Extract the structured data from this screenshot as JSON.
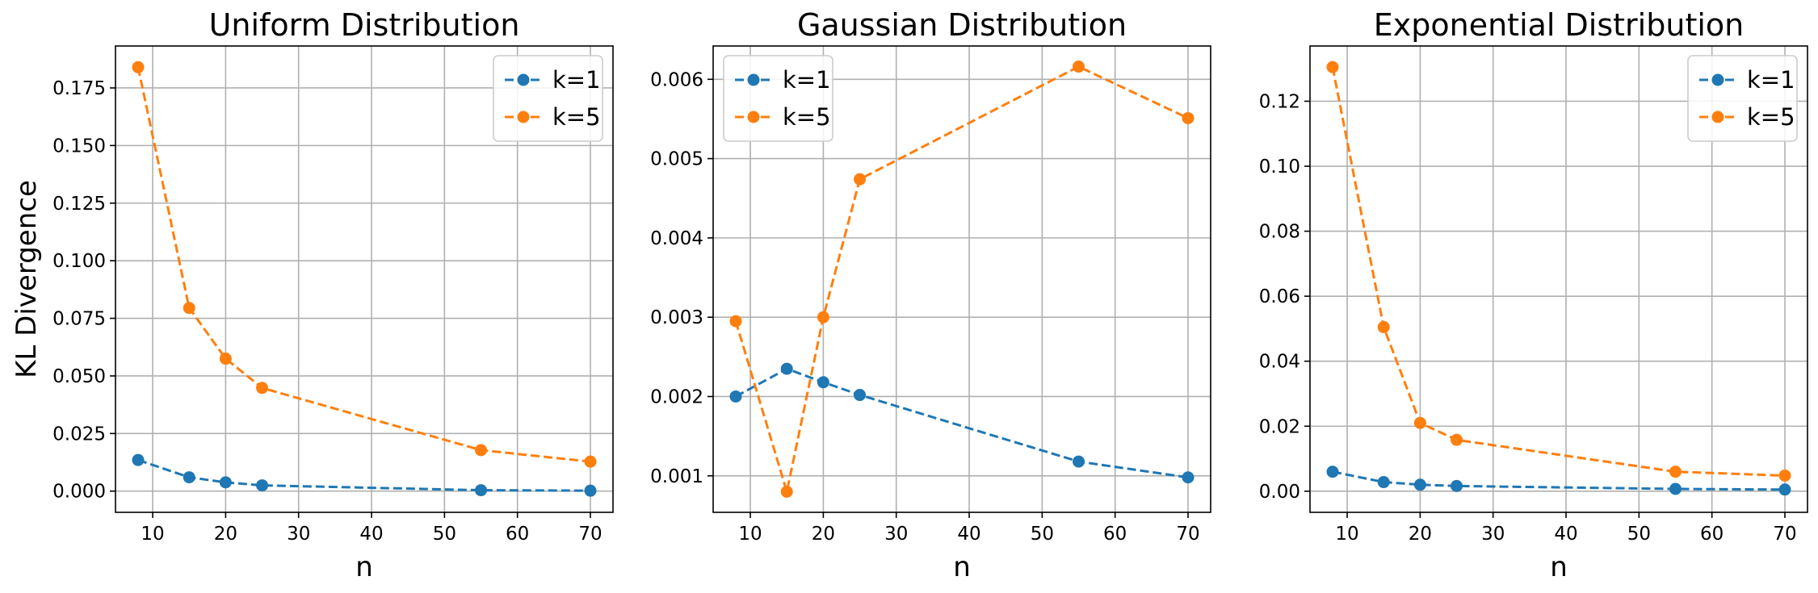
{
  "figure": {
    "colors": {
      "k1": "#1f77b4",
      "k5": "#ff7f0e"
    }
  },
  "chart_data": [
    {
      "type": "line",
      "title": "Uniform Distribution",
      "xlabel": "n",
      "ylabel": "KL Divergence",
      "x": [
        8,
        15,
        20,
        25,
        55,
        70
      ],
      "xlim": [
        4.9,
        73.1
      ],
      "ylim": [
        -0.0092,
        0.1932
      ],
      "xticks": [
        10,
        20,
        30,
        40,
        50,
        60,
        70
      ],
      "xtick_labels": [
        "10",
        "20",
        "30",
        "40",
        "50",
        "60",
        "70"
      ],
      "yticks": [
        0,
        0.025,
        0.05,
        0.075,
        0.1,
        0.125,
        0.15,
        0.175
      ],
      "ytick_labels": [
        "0.000",
        "0.025",
        "0.050",
        "0.075",
        "0.100",
        "0.125",
        "0.150",
        "0.175"
      ],
      "grid": true,
      "legend": "upper right",
      "line_style": "dashed",
      "marker": "circle",
      "series": [
        {
          "name": "k=1",
          "values": [
            0.0135,
            0.006,
            0.0038,
            0.0025,
            0.0004,
            0.0002
          ]
        },
        {
          "name": "k=5",
          "values": [
            0.184,
            0.0795,
            0.0575,
            0.0448,
            0.0178,
            0.0128
          ]
        }
      ]
    },
    {
      "type": "line",
      "title": "Gaussian Distribution",
      "xlabel": "n",
      "ylabel": "",
      "x": [
        8,
        15,
        20,
        25,
        55,
        70
      ],
      "xlim": [
        4.9,
        73.1
      ],
      "ylim": [
        0.00054,
        0.00642
      ],
      "xticks": [
        10,
        20,
        30,
        40,
        50,
        60,
        70
      ],
      "xtick_labels": [
        "10",
        "20",
        "30",
        "40",
        "50",
        "60",
        "70"
      ],
      "yticks": [
        0.001,
        0.002,
        0.003,
        0.004,
        0.005,
        0.006
      ],
      "ytick_labels": [
        "0.001",
        "0.002",
        "0.003",
        "0.004",
        "0.005",
        "0.006"
      ],
      "grid": true,
      "legend": "upper left",
      "line_style": "dashed",
      "marker": "circle",
      "series": [
        {
          "name": "k=1",
          "values": [
            0.002,
            0.00235,
            0.00218,
            0.00202,
            0.00118,
            0.00098
          ]
        },
        {
          "name": "k=5",
          "values": [
            0.00295,
            0.0008,
            0.003,
            0.00474,
            0.00616,
            0.00551
          ]
        }
      ]
    },
    {
      "type": "line",
      "title": "Exponential Distribution",
      "xlabel": "n",
      "ylabel": "",
      "x": [
        8,
        15,
        20,
        25,
        55,
        70
      ],
      "xlim": [
        4.9,
        73.1
      ],
      "ylim": [
        -0.0065,
        0.137
      ],
      "xticks": [
        10,
        20,
        30,
        40,
        50,
        60,
        70
      ],
      "xtick_labels": [
        "10",
        "20",
        "30",
        "40",
        "50",
        "60",
        "70"
      ],
      "yticks": [
        0,
        0.02,
        0.04,
        0.06,
        0.08,
        0.1,
        0.12
      ],
      "ytick_labels": [
        "0.00",
        "0.02",
        "0.04",
        "0.06",
        "0.08",
        "0.10",
        "0.12"
      ],
      "grid": true,
      "legend": "upper right",
      "line_style": "dashed",
      "marker": "circle",
      "series": [
        {
          "name": "k=1",
          "values": [
            0.006,
            0.0028,
            0.002,
            0.0016,
            0.0007,
            0.0005
          ]
        },
        {
          "name": "k=5",
          "values": [
            0.1305,
            0.0505,
            0.021,
            0.0158,
            0.006,
            0.0048
          ]
        }
      ]
    }
  ]
}
